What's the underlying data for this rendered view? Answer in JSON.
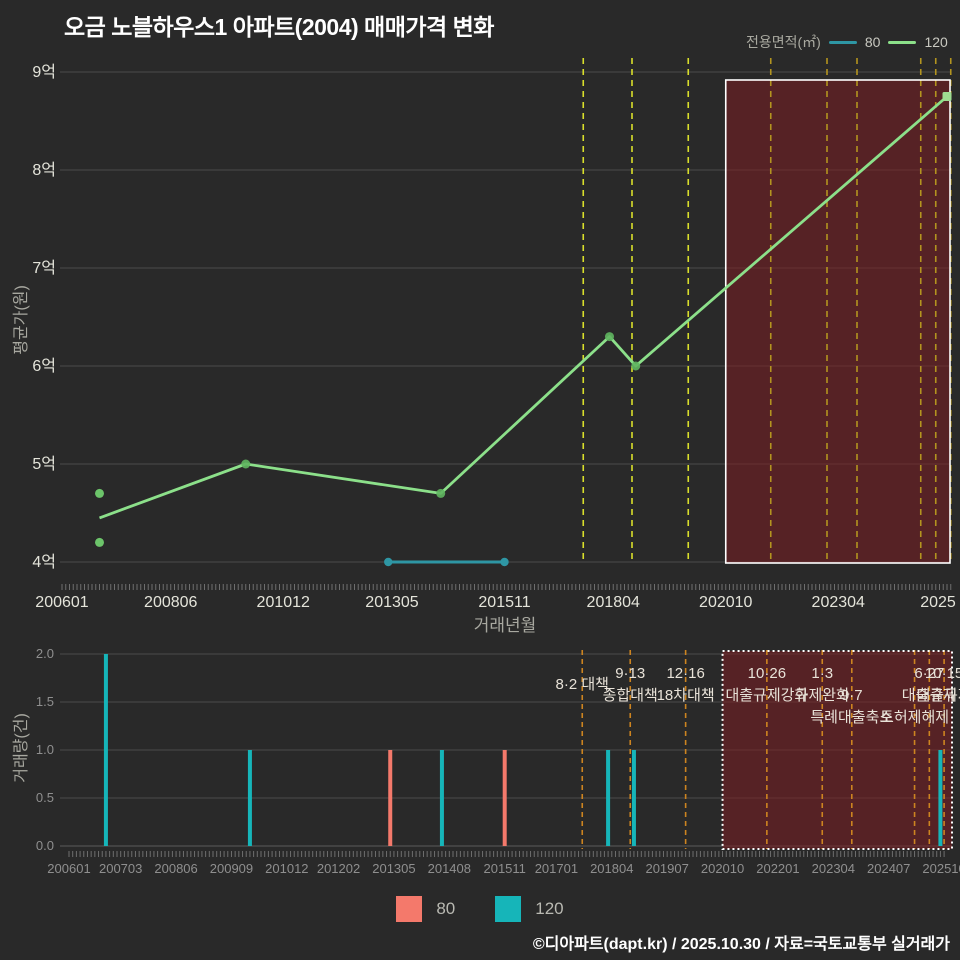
{
  "title": "오금 노블하우스1 아파트(2004) 매매가격 변화",
  "legend_top": {
    "label": "전용면적(㎡)",
    "items": [
      {
        "label": "80",
        "color": "#2e96a4"
      },
      {
        "label": "120",
        "color": "#8ce08a"
      }
    ]
  },
  "legend_bottom": {
    "items": [
      {
        "label": "80",
        "color": "#f4796b"
      },
      {
        "label": "120",
        "color": "#16b5b9"
      }
    ]
  },
  "footer": "©디아파트(dapt.kr) / 2025.10.30 / 자료=국토교통부 실거래가",
  "colors": {
    "background": "#292929",
    "grid": "#4b4b4b",
    "grid_zero": "#5c5c5c",
    "tick_minor": "#6e6e6e",
    "axis_text_bright": "#e4e4da",
    "axis_text_dim": "#8f8f8f",
    "axis_title": "#a8a8a0",
    "event_text": "#e8e2d8",
    "event_line_top_outside": "#d9df2b",
    "event_line_top_inside": "#b3941f",
    "event_line_bottom": "#cd8420",
    "highlight_fill": "#7c1d22",
    "highlight_border": "#ffffff",
    "series_80_line": "#2e96a4",
    "series_120_line": "#8ce08a",
    "series_120_marker": "#5fb55f",
    "series_120_end_marker": "#9fdc92",
    "scatter_dot": "#6cc46a",
    "bar_80": "#f4796b",
    "bar_120": "#16b5b9"
  },
  "chart_data": [
    {
      "type": "line",
      "name": "price-chart",
      "ylabel": "평균가(원)",
      "xlabel": "거래년월",
      "unit": "억원",
      "ylim": [
        4,
        9
      ],
      "y_ticks": [
        {
          "value": 9,
          "label": "9억"
        },
        {
          "value": 8,
          "label": "8억"
        },
        {
          "value": 7,
          "label": "7억"
        },
        {
          "value": 6,
          "label": "6억"
        },
        {
          "value": 5,
          "label": "5억"
        },
        {
          "value": 4,
          "label": "4억"
        }
      ],
      "x_ticks": [
        {
          "ym": "200601",
          "label": "200601"
        },
        {
          "ym": "200806",
          "label": "200806"
        },
        {
          "ym": "201012",
          "label": "201012"
        },
        {
          "ym": "201305",
          "label": "201305"
        },
        {
          "ym": "201511",
          "label": "201511"
        },
        {
          "ym": "201804",
          "label": "201804"
        },
        {
          "ym": "202010",
          "label": "202010"
        },
        {
          "ym": "202304",
          "label": "202304"
        },
        {
          "ym": "202510",
          "label": "2025"
        }
      ],
      "series": [
        {
          "name": "80",
          "points": [
            {
              "ym": "201304",
              "value": 4.0
            },
            {
              "ym": "201511",
              "value": 4.0
            }
          ]
        },
        {
          "name": "120",
          "points": [
            {
              "ym": "200611",
              "value": 4.45
            },
            {
              "ym": "201002",
              "value": 5.0
            },
            {
              "ym": "201406",
              "value": 4.7
            },
            {
              "ym": "201803",
              "value": 6.3
            },
            {
              "ym": "201810",
              "value": 6.0
            },
            {
              "ym": "202509",
              "value": 8.75
            }
          ]
        }
      ],
      "scatter_120": [
        {
          "ym": "200611",
          "value": 4.7
        },
        {
          "ym": "200611",
          "value": 4.2
        }
      ],
      "highlight_region": {
        "from": "202010",
        "to": "202510"
      }
    },
    {
      "type": "bar",
      "name": "volume-chart",
      "ylabel": "거래량(건)",
      "ylim": [
        0,
        2
      ],
      "y_ticks": [
        {
          "value": 2,
          "label": "2.0"
        },
        {
          "value": 1.5,
          "label": "1.5"
        },
        {
          "value": 1,
          "label": "1.0"
        },
        {
          "value": 0.5,
          "label": "0.5"
        },
        {
          "value": 0,
          "label": "0.0"
        }
      ],
      "x_ticks": [
        {
          "ym": "200601",
          "label": "200601"
        },
        {
          "ym": "200703",
          "label": "200703"
        },
        {
          "ym": "200806",
          "label": "200806"
        },
        {
          "ym": "200909",
          "label": "200909"
        },
        {
          "ym": "201012",
          "label": "201012"
        },
        {
          "ym": "201202",
          "label": "201202"
        },
        {
          "ym": "201305",
          "label": "201305"
        },
        {
          "ym": "201408",
          "label": "201408"
        },
        {
          "ym": "201511",
          "label": "201511"
        },
        {
          "ym": "201701",
          "label": "201701"
        },
        {
          "ym": "201804",
          "label": "201804"
        },
        {
          "ym": "201907",
          "label": "201907"
        },
        {
          "ym": "202010",
          "label": "202010"
        },
        {
          "ym": "202201",
          "label": "202201"
        },
        {
          "ym": "202304",
          "label": "202304"
        },
        {
          "ym": "202407",
          "label": "202407"
        },
        {
          "ym": "202510",
          "label": "202510"
        }
      ],
      "bars": [
        {
          "ym": "200611",
          "value": 2,
          "series": "120"
        },
        {
          "ym": "201002",
          "value": 1,
          "series": "120"
        },
        {
          "ym": "201304",
          "value": 1,
          "series": "80"
        },
        {
          "ym": "201406",
          "value": 1,
          "series": "120"
        },
        {
          "ym": "201511",
          "value": 1,
          "series": "80"
        },
        {
          "ym": "201803",
          "value": 1,
          "series": "120"
        },
        {
          "ym": "201810",
          "value": 1,
          "series": "120"
        },
        {
          "ym": "202509",
          "value": 1,
          "series": "120"
        }
      ],
      "highlight_region": {
        "from": "202010",
        "to": "202510"
      },
      "events": [
        {
          "ym": "201708",
          "lines": [
            {
              "text": "8·2 대책",
              "row": 1.5
            }
          ]
        },
        {
          "ym": "201809",
          "lines": [
            {
              "text": "9·13",
              "row": 1
            },
            {
              "text": "종합대책",
              "row": 2
            }
          ]
        },
        {
          "ym": "201912",
          "lines": [
            {
              "text": "12·16",
              "row": 1
            },
            {
              "text": "18차대책",
              "row": 2
            }
          ]
        },
        {
          "ym": "202110",
          "lines": [
            {
              "text": "10·26",
              "row": 1
            },
            {
              "text": "대출규제강화",
              "row": 2
            }
          ]
        },
        {
          "ym": "202301",
          "lines": [
            {
              "text": "1·3",
              "row": 1
            },
            {
              "text": "규제완화",
              "row": 2
            }
          ]
        },
        {
          "ym": "202309",
          "lines": [
            {
              "text": "9·7",
              "row": 2
            },
            {
              "text": "특례대출축소",
              "row": 3
            }
          ]
        },
        {
          "ym": "202502",
          "lines": [
            {
              "text": "토허제해제",
              "row": 3
            }
          ]
        },
        {
          "ym": "202506",
          "lines": [
            {
              "text": "6·27",
              "row": 1
            },
            {
              "text": "대출규제",
              "row": 2
            }
          ]
        },
        {
          "ym": "202510",
          "lines": [
            {
              "text": "10·15",
              "row": 1
            },
            {
              "text": "대출규제",
              "row": 2
            }
          ]
        }
      ]
    }
  ]
}
